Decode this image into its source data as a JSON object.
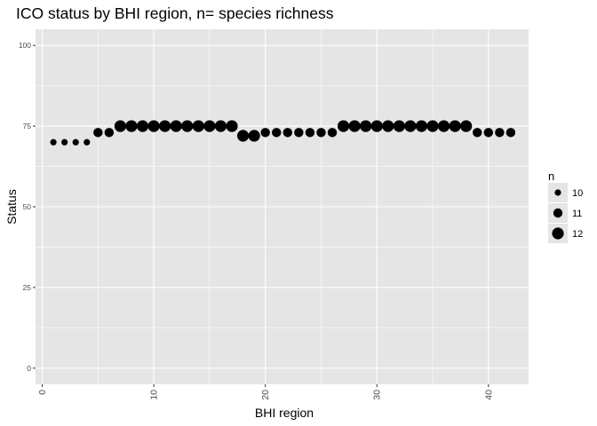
{
  "chart_data": {
    "type": "scatter",
    "title": "ICO status by BHI region, n= species richness",
    "xlabel": "BHI region",
    "ylabel": "Status",
    "xlim": [
      -0.6,
      43.6
    ],
    "ylim": [
      -5,
      105
    ],
    "x_ticks": [
      0,
      10,
      20,
      30,
      40
    ],
    "y_ticks": [
      0,
      25,
      50,
      75,
      100
    ],
    "x": [
      1,
      2,
      3,
      4,
      5,
      6,
      7,
      8,
      9,
      10,
      11,
      12,
      13,
      14,
      15,
      16,
      17,
      18,
      19,
      20,
      21,
      22,
      23,
      24,
      25,
      26,
      27,
      28,
      29,
      30,
      31,
      32,
      33,
      34,
      35,
      36,
      37,
      38,
      39,
      40,
      41,
      42
    ],
    "y": [
      70,
      70,
      70,
      70,
      73,
      73,
      75,
      75,
      75,
      75,
      75,
      75,
      75,
      75,
      75,
      75,
      75,
      72,
      72,
      73,
      73,
      73,
      73,
      73,
      73,
      73,
      75,
      75,
      75,
      75,
      75,
      75,
      75,
      75,
      75,
      75,
      75,
      75,
      73,
      73,
      73,
      73
    ],
    "n": [
      10,
      10,
      10,
      10,
      11,
      11,
      12,
      12,
      12,
      12,
      12,
      12,
      12,
      12,
      12,
      12,
      12,
      12,
      12,
      11,
      11,
      11,
      11,
      11,
      11,
      11,
      12,
      12,
      12,
      12,
      12,
      12,
      12,
      12,
      12,
      12,
      12,
      12,
      11,
      11,
      11,
      11
    ],
    "legend": {
      "title": "n",
      "position": "right",
      "entries": [
        10,
        11,
        12
      ]
    },
    "grid": true,
    "colors": {
      "panel": "#e5e5e5",
      "grid": "#ffffff",
      "point": "#000000"
    }
  }
}
